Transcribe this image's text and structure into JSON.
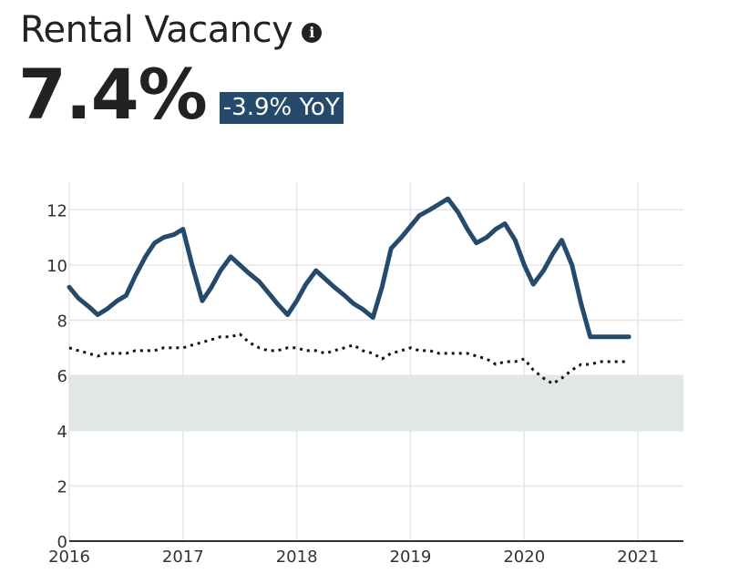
{
  "header": {
    "title": "Rental Vacancy",
    "info_icon": "info-icon",
    "value": "7.4%",
    "yoy": "-3.9% YoY"
  },
  "colors": {
    "main_series": "#254a6b",
    "reference_series": "#111111",
    "band_fill": "#e1e8e4",
    "badge_bg": "#254a6b",
    "grid": "#e6e6e6"
  },
  "chart_data": {
    "type": "line",
    "title": "",
    "xlabel": "",
    "ylabel": "",
    "xlim": [
      2016,
      2021.4
    ],
    "ylim": [
      0,
      13
    ],
    "x_ticks": [
      "2016",
      "2017",
      "2018",
      "2019",
      "2020",
      "2021"
    ],
    "y_ticks": [
      "0",
      "2",
      "4",
      "6",
      "8",
      "10",
      "12"
    ],
    "grid": true,
    "band": {
      "y_from": 4,
      "y_to": 6
    },
    "series": [
      {
        "style": "solid",
        "x": [
          2016.0,
          2016.08,
          2016.17,
          2016.25,
          2016.33,
          2016.42,
          2016.5,
          2016.58,
          2016.67,
          2016.75,
          2016.83,
          2016.92,
          2017.0,
          2017.08,
          2017.17,
          2017.25,
          2017.33,
          2017.42,
          2017.5,
          2017.58,
          2017.67,
          2017.75,
          2017.83,
          2017.92,
          2018.0,
          2018.08,
          2018.17,
          2018.25,
          2018.33,
          2018.42,
          2018.5,
          2018.58,
          2018.67,
          2018.75,
          2018.83,
          2018.92,
          2019.0,
          2019.08,
          2019.17,
          2019.25,
          2019.33,
          2019.42,
          2019.5,
          2019.58,
          2019.67,
          2019.75,
          2019.83,
          2019.92,
          2020.0,
          2020.08,
          2020.17,
          2020.25,
          2020.33,
          2020.42,
          2020.5,
          2020.58,
          2020.67,
          2020.75,
          2020.83,
          2020.92
        ],
        "y": [
          9.2,
          8.8,
          8.5,
          8.2,
          8.4,
          8.7,
          8.9,
          9.6,
          10.3,
          10.8,
          11.0,
          11.1,
          11.3,
          10.0,
          8.7,
          9.2,
          9.8,
          10.3,
          10.0,
          9.7,
          9.4,
          9.0,
          8.6,
          8.2,
          8.7,
          9.3,
          9.8,
          9.5,
          9.2,
          8.9,
          8.6,
          8.4,
          8.1,
          9.2,
          10.6,
          11.0,
          11.4,
          11.8,
          12.0,
          12.2,
          12.4,
          11.9,
          11.3,
          10.8,
          11.0,
          11.3,
          11.5,
          10.9,
          10.0,
          9.3,
          9.8,
          10.4,
          10.9,
          10.0,
          8.6,
          7.4,
          7.4,
          7.4,
          7.4,
          7.4
        ]
      },
      {
        "style": "dotted",
        "x": [
          2016.0,
          2016.08,
          2016.17,
          2016.25,
          2016.33,
          2016.42,
          2016.5,
          2016.58,
          2016.67,
          2016.75,
          2016.83,
          2016.92,
          2017.0,
          2017.08,
          2017.17,
          2017.25,
          2017.33,
          2017.42,
          2017.5,
          2017.58,
          2017.67,
          2017.75,
          2017.83,
          2017.92,
          2018.0,
          2018.08,
          2018.17,
          2018.25,
          2018.33,
          2018.42,
          2018.5,
          2018.58,
          2018.67,
          2018.75,
          2018.83,
          2018.92,
          2019.0,
          2019.08,
          2019.17,
          2019.25,
          2019.33,
          2019.42,
          2019.5,
          2019.58,
          2019.67,
          2019.75,
          2019.83,
          2019.92,
          2020.0,
          2020.08,
          2020.17,
          2020.25,
          2020.33,
          2020.42,
          2020.5,
          2020.58,
          2020.67,
          2020.75,
          2020.83,
          2020.92
        ],
        "y": [
          7.0,
          6.9,
          6.8,
          6.7,
          6.8,
          6.8,
          6.8,
          6.9,
          6.9,
          6.9,
          7.0,
          7.0,
          7.0,
          7.1,
          7.2,
          7.3,
          7.4,
          7.4,
          7.5,
          7.2,
          7.0,
          6.9,
          6.9,
          7.0,
          7.0,
          6.9,
          6.9,
          6.8,
          6.9,
          7.0,
          7.1,
          6.9,
          6.8,
          6.6,
          6.8,
          6.9,
          7.0,
          6.9,
          6.9,
          6.8,
          6.8,
          6.8,
          6.8,
          6.7,
          6.6,
          6.4,
          6.5,
          6.5,
          6.6,
          6.2,
          5.9,
          5.7,
          5.9,
          6.2,
          6.4,
          6.4,
          6.5,
          6.5,
          6.5,
          6.5
        ]
      }
    ]
  }
}
